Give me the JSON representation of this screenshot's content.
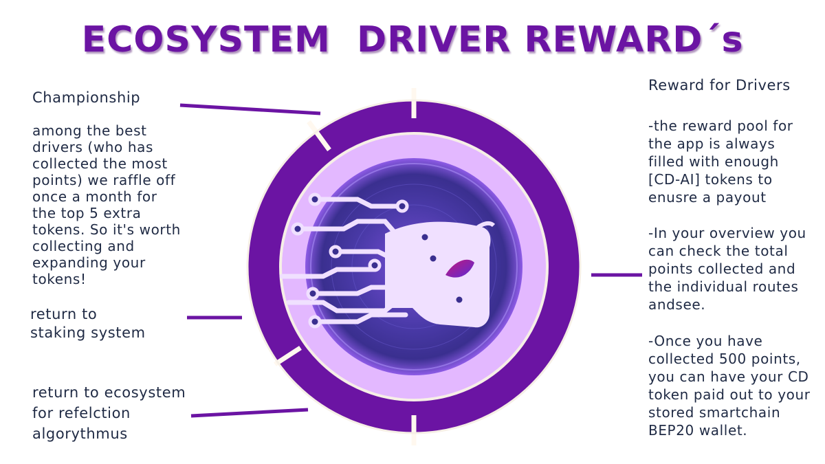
{
  "title": "ECOSYSTEM  DRIVER REWARD´s",
  "colors": {
    "ring": "#6b14a3",
    "inner_disc": "#e3b8ff",
    "title": "#6b14a3",
    "text": "#1f2a44"
  },
  "labels": {
    "championship": {
      "heading": "Championship",
      "body": "among the best\ndrivers (who has\ncollected the most\npoints) we raffle off\nonce a month for\nthe top 5 extra\ntokens. So it's worth\ncollecting and\nexpanding your\ntokens!"
    },
    "staking": "return to\nstaking system",
    "reflection": "return to ecosystem\nfor refelction\nalgorythmus",
    "reward": {
      "heading": "Reward for Drivers",
      "p1": "-the reward pool for\nthe app is always\nfilled with enough\n[CD-AI] tokens to\nenusre a payout",
      "p2": "-In your overview you\ncan check the total\npoints collected and\nthe individual routes\nandsee.",
      "p3": "-Once you have\ncollected 500 points,\nyou can have your CD\ntoken paid out to your\nstored smartchain\nBEP20 wallet."
    }
  },
  "center_icon": "ai-car-circuit-icon"
}
